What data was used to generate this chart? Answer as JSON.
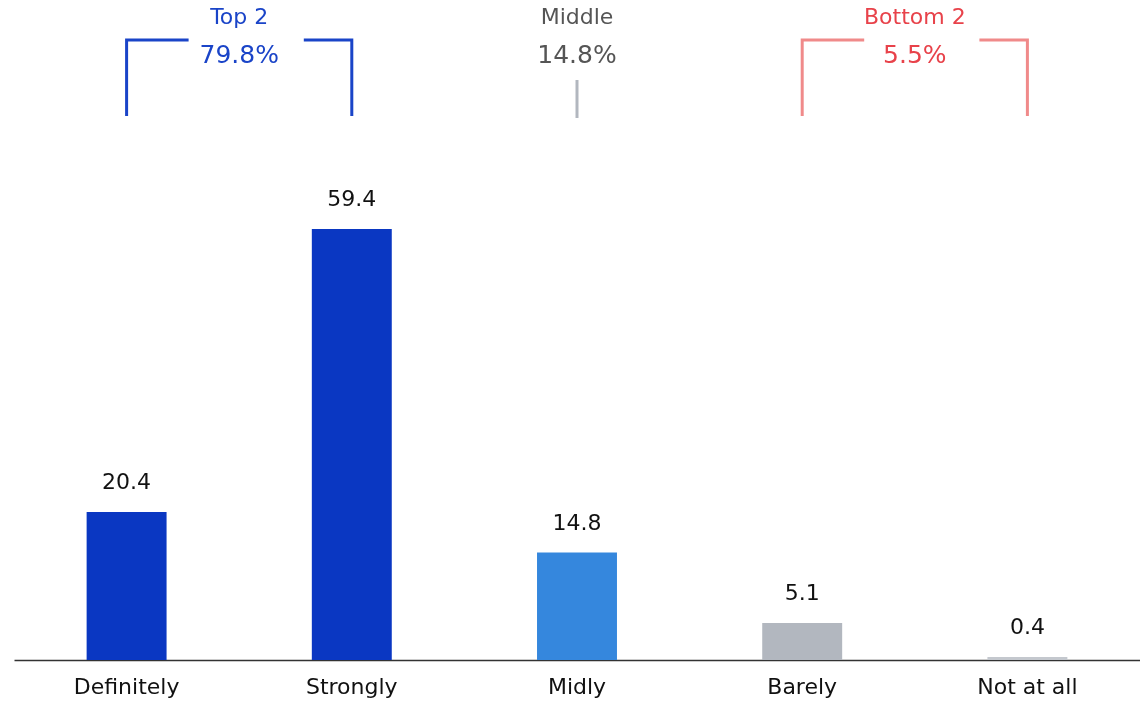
{
  "chart_data": {
    "type": "bar",
    "categories": [
      "Definitely",
      "Strongly",
      "Midly",
      "Barely",
      "Not at all"
    ],
    "values": [
      20.4,
      59.4,
      14.8,
      5.1,
      0.4
    ],
    "colors": [
      "#0a37c2",
      "#0a37c2",
      "#3587dd",
      "#b2b7bf",
      "#c4c8ce"
    ],
    "data_labels": true,
    "annotations": [
      "Top 2",
      "79.8%",
      "Middle",
      "14.8%",
      "Bottom 2",
      "5.5%"
    ]
  }
}
